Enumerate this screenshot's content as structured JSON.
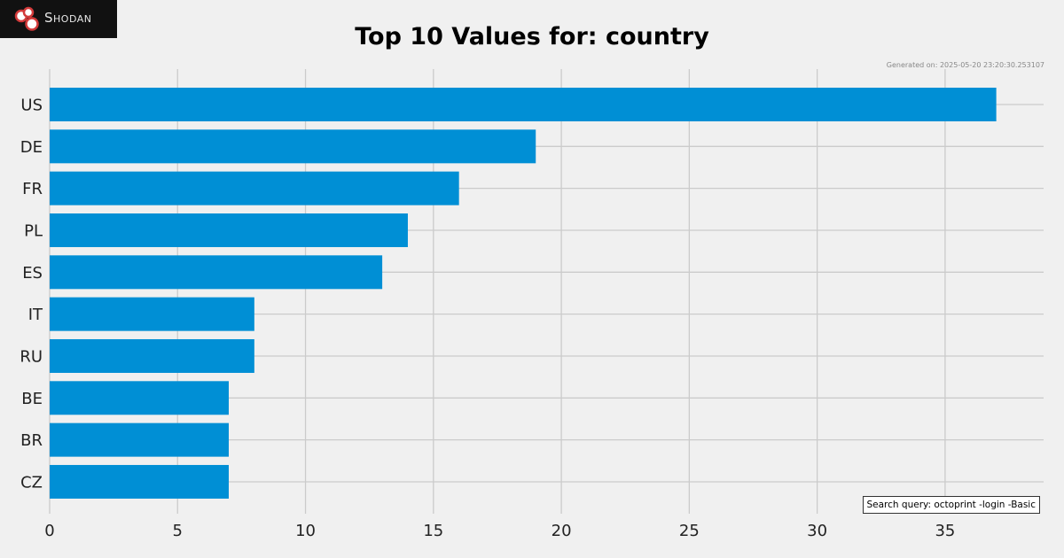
{
  "header": {
    "logo_text": "Shodan",
    "title": "Top 10 Values for: country",
    "generated": "Generated on: 2025-05-20 23:20:30.253107",
    "search_query": "Search query: octoprint -login -Basic"
  },
  "colors": {
    "bar": "#008fd5",
    "grid": "#cbcbcb",
    "background": "#f0f0f0"
  },
  "chart_data": {
    "type": "bar",
    "orientation": "horizontal",
    "title": "Top 10 Values for: country",
    "categories": [
      "US",
      "DE",
      "FR",
      "PL",
      "ES",
      "IT",
      "RU",
      "BE",
      "BR",
      "CZ"
    ],
    "values": [
      37,
      19,
      16,
      14,
      13,
      8,
      8,
      7,
      7,
      7
    ],
    "xticks": [
      0,
      5,
      10,
      15,
      20,
      25,
      30,
      35
    ],
    "xlim": [
      0,
      38.85
    ],
    "grid": true
  }
}
